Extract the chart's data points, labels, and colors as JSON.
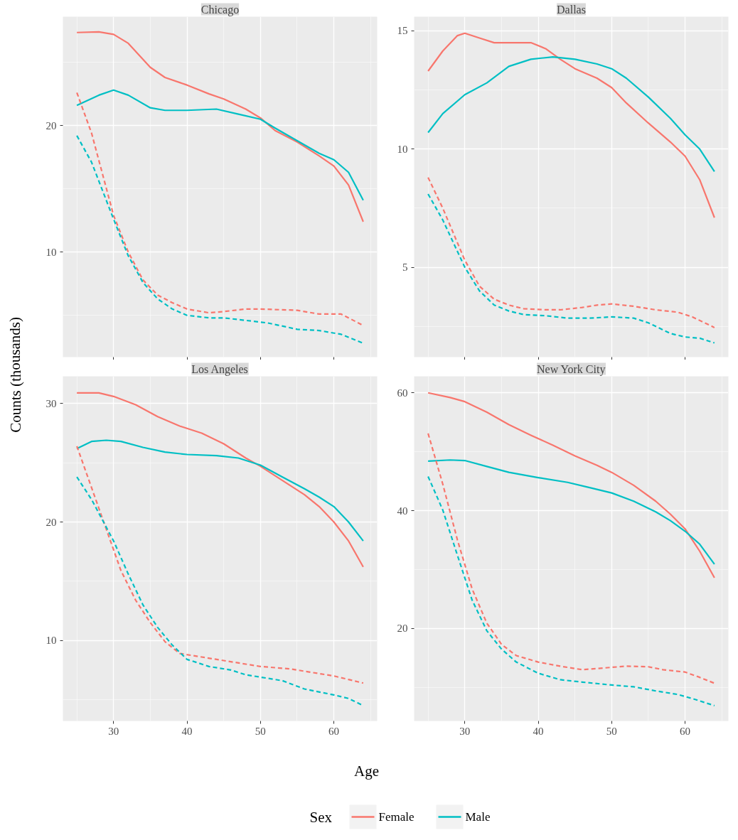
{
  "chart_data": [
    {
      "type": "line",
      "title": "Chicago",
      "ylabel": "Counts (thousands)",
      "legend": "bottom",
      "legend_title": "Sex",
      "xlim": [
        23.1,
        65.9
      ],
      "xticks": [
        30,
        40,
        50,
        60
      ],
      "ylim": [
        1.7,
        28.6
      ],
      "yticks": [
        10,
        20
      ],
      "grid": true,
      "tick_labels": "y",
      "series": [
        {
          "name": "Female",
          "color": "#f8766d",
          "line_style": "solid",
          "x": [
            25,
            28,
            30,
            32,
            35,
            37,
            40,
            43,
            45,
            48,
            50,
            52,
            55,
            58,
            60,
            62,
            64
          ],
          "values": [
            27.35,
            27.4,
            27.2,
            26.5,
            24.6,
            23.8,
            23.2,
            22.5,
            22.1,
            21.3,
            20.6,
            19.6,
            18.7,
            17.6,
            16.8,
            15.3,
            12.4
          ]
        },
        {
          "name": "Male",
          "color": "#00bfc4",
          "line_style": "solid",
          "x": [
            25,
            28,
            30,
            32,
            35,
            37,
            40,
            44,
            47,
            50,
            52,
            55,
            58,
            60,
            62,
            64
          ],
          "values": [
            21.6,
            22.4,
            22.8,
            22.4,
            21.4,
            21.2,
            21.2,
            21.3,
            20.9,
            20.5,
            19.8,
            18.8,
            17.8,
            17.3,
            16.3,
            14.1
          ]
        },
        {
          "color": "#f8766d",
          "line_style": "dashed",
          "x": [
            25,
            27,
            30,
            32,
            34,
            36,
            38,
            40,
            43,
            45,
            48,
            50,
            55,
            58,
            61,
            64
          ],
          "values": [
            22.6,
            19.4,
            12.9,
            10.0,
            7.8,
            6.6,
            6.0,
            5.5,
            5.2,
            5.3,
            5.5,
            5.5,
            5.4,
            5.1,
            5.1,
            4.2
          ]
        },
        {
          "color": "#00bfc4",
          "line_style": "dashed",
          "x": [
            25,
            27,
            30,
            32,
            34,
            36,
            38,
            40,
            43,
            45,
            48,
            51,
            55,
            58,
            61,
            64
          ],
          "values": [
            19.2,
            17.1,
            12.6,
            9.7,
            7.6,
            6.3,
            5.5,
            5.0,
            4.8,
            4.8,
            4.6,
            4.4,
            3.9,
            3.8,
            3.5,
            2.8
          ]
        }
      ]
    },
    {
      "type": "line",
      "title": "Dallas",
      "xlim": [
        23.1,
        65.9
      ],
      "xticks": [
        30,
        40,
        50,
        60
      ],
      "ylim": [
        1.2,
        15.6
      ],
      "yticks": [
        5,
        10,
        15
      ],
      "grid": true,
      "tick_labels": "y",
      "series": [
        {
          "name": "Female",
          "color": "#f8766d",
          "line_style": "solid",
          "x": [
            25,
            27,
            29,
            30,
            32,
            34,
            36,
            39,
            41,
            43,
            45,
            48,
            50,
            52,
            55,
            58,
            60,
            62,
            64
          ],
          "values": [
            13.3,
            14.15,
            14.8,
            14.9,
            14.7,
            14.5,
            14.5,
            14.5,
            14.25,
            13.8,
            13.4,
            13.0,
            12.6,
            11.95,
            11.1,
            10.3,
            9.7,
            8.7,
            7.1
          ]
        },
        {
          "name": "Male",
          "color": "#00bfc4",
          "line_style": "solid",
          "x": [
            25,
            27,
            30,
            33,
            36,
            39,
            42,
            45,
            48,
            50,
            52,
            55,
            58,
            60,
            62,
            64
          ],
          "values": [
            10.7,
            11.5,
            12.3,
            12.8,
            13.5,
            13.8,
            13.9,
            13.8,
            13.6,
            13.4,
            13.0,
            12.2,
            11.3,
            10.6,
            10.0,
            9.05
          ]
        },
        {
          "color": "#f8766d",
          "line_style": "dashed",
          "x": [
            25,
            27,
            30,
            32,
            34,
            36,
            38,
            41,
            43,
            46,
            48,
            50,
            53,
            56,
            59,
            61,
            64
          ],
          "values": [
            8.8,
            7.5,
            5.3,
            4.2,
            3.65,
            3.4,
            3.25,
            3.2,
            3.2,
            3.3,
            3.4,
            3.45,
            3.35,
            3.2,
            3.1,
            2.9,
            2.45
          ]
        },
        {
          "color": "#00bfc4",
          "line_style": "dashed",
          "x": [
            25,
            27,
            30,
            32,
            34,
            36,
            38,
            41,
            44,
            47,
            50,
            53,
            55,
            58,
            60,
            62,
            64
          ],
          "values": [
            8.1,
            7.0,
            5.0,
            4.0,
            3.4,
            3.15,
            3.0,
            2.95,
            2.85,
            2.85,
            2.9,
            2.85,
            2.65,
            2.2,
            2.05,
            2.0,
            1.8
          ]
        }
      ]
    },
    {
      "type": "line",
      "title": "Los Angeles",
      "xlabel": "Age",
      "xlim": [
        23.1,
        65.9
      ],
      "xticks": [
        30,
        40,
        50,
        60
      ],
      "ylim": [
        3.2,
        32.3
      ],
      "yticks": [
        10,
        20,
        30
      ],
      "grid": true,
      "series": [
        {
          "name": "Female",
          "color": "#f8766d",
          "line_style": "solid",
          "x": [
            25,
            28,
            30,
            33,
            36,
            39,
            42,
            45,
            48,
            50,
            53,
            56,
            58,
            60,
            62,
            64
          ],
          "values": [
            30.9,
            30.9,
            30.6,
            29.9,
            28.9,
            28.1,
            27.5,
            26.6,
            25.4,
            24.7,
            23.5,
            22.3,
            21.3,
            20.0,
            18.4,
            16.2
          ]
        },
        {
          "name": "Male",
          "color": "#00bfc4",
          "line_style": "solid",
          "x": [
            25,
            27,
            29,
            31,
            34,
            37,
            40,
            44,
            47,
            50,
            53,
            56,
            58,
            60,
            62,
            64
          ],
          "values": [
            26.2,
            26.8,
            26.9,
            26.8,
            26.3,
            25.9,
            25.7,
            25.6,
            25.4,
            24.8,
            23.8,
            22.8,
            22.1,
            21.3,
            20.0,
            18.4
          ]
        },
        {
          "color": "#f8766d",
          "line_style": "dashed",
          "x": [
            25,
            27,
            29,
            31,
            33,
            35,
            37,
            39,
            42,
            45,
            48,
            50,
            54,
            57,
            60,
            62,
            64
          ],
          "values": [
            26.4,
            22.9,
            19.4,
            15.9,
            13.4,
            11.5,
            9.9,
            8.9,
            8.6,
            8.3,
            8.0,
            7.8,
            7.6,
            7.3,
            7.0,
            6.7,
            6.4
          ]
        },
        {
          "color": "#00bfc4",
          "line_style": "dashed",
          "x": [
            25,
            27,
            30,
            32,
            34,
            36,
            38,
            40,
            43,
            46,
            48,
            51,
            53,
            56,
            60,
            62,
            64
          ],
          "values": [
            23.8,
            21.9,
            18.4,
            15.6,
            13.0,
            11.1,
            9.6,
            8.4,
            7.8,
            7.5,
            7.1,
            6.8,
            6.6,
            5.9,
            5.4,
            5.1,
            4.5
          ]
        }
      ]
    },
    {
      "type": "line",
      "title": "New York City",
      "xlim": [
        23.1,
        65.9
      ],
      "xticks": [
        30,
        40,
        50,
        60
      ],
      "ylim": [
        4.3,
        62.8
      ],
      "yticks": [
        20,
        40,
        60
      ],
      "grid": true,
      "series": [
        {
          "name": "Female",
          "color": "#f8766d",
          "line_style": "solid",
          "x": [
            25,
            28,
            30,
            33,
            36,
            39,
            42,
            45,
            48,
            50,
            53,
            56,
            58,
            60,
            62,
            64
          ],
          "values": [
            60,
            59.2,
            58.5,
            56.7,
            54.6,
            52.8,
            51.1,
            49.3,
            47.7,
            46.5,
            44.3,
            41.6,
            39.4,
            36.9,
            33.1,
            28.6
          ]
        },
        {
          "name": "Male",
          "color": "#00bfc4",
          "line_style": "solid",
          "x": [
            25,
            28,
            30,
            33,
            36,
            40,
            44,
            47,
            50,
            53,
            56,
            58,
            60,
            62,
            64
          ],
          "values": [
            48.4,
            48.6,
            48.5,
            47.5,
            46.5,
            45.6,
            44.8,
            43.9,
            43.0,
            41.6,
            39.8,
            38.3,
            36.5,
            34.3,
            30.9
          ]
        },
        {
          "color": "#f8766d",
          "line_style": "dashed",
          "x": [
            25,
            27,
            29,
            31,
            33,
            35,
            37,
            40,
            43,
            46,
            49,
            52,
            55,
            57,
            60,
            62,
            64
          ],
          "values": [
            53.1,
            44.5,
            35.0,
            26.7,
            20.9,
            17.3,
            15.4,
            14.3,
            13.6,
            13.0,
            13.3,
            13.6,
            13.5,
            13.0,
            12.6,
            11.7,
            10.7
          ]
        },
        {
          "color": "#00bfc4",
          "line_style": "dashed",
          "x": [
            25,
            27,
            29,
            31,
            33,
            35,
            37,
            40,
            43,
            46,
            50,
            53,
            56,
            59,
            61,
            64
          ],
          "values": [
            45.8,
            40.1,
            32.4,
            24.8,
            19.6,
            16.5,
            14.3,
            12.4,
            11.3,
            10.9,
            10.4,
            10.1,
            9.4,
            8.8,
            8.1,
            6.9
          ]
        }
      ]
    }
  ]
}
